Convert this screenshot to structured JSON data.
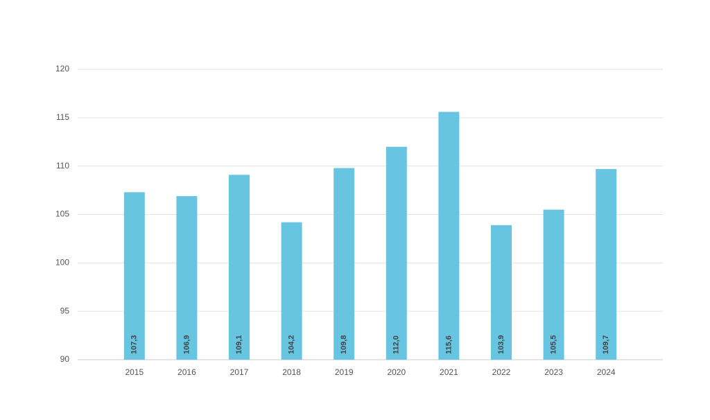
{
  "chart_data": {
    "type": "bar",
    "categories": [
      "2015",
      "2016",
      "2017",
      "2018",
      "2019",
      "2020",
      "2021",
      "2022",
      "2023",
      "2024"
    ],
    "values": [
      107.3,
      106.9,
      109.1,
      104.2,
      109.8,
      112.0,
      115.6,
      103.9,
      105.5,
      109.7
    ],
    "value_labels": [
      "107,3",
      "106,9",
      "109,1",
      "104,2",
      "109,8",
      "112,0",
      "115,6",
      "103,9",
      "105,5",
      "109,7"
    ],
    "color": "#67c5e2",
    "ylim": [
      90,
      120
    ],
    "yticks": [
      90,
      95,
      100,
      105,
      110,
      115,
      120
    ],
    "grid": true
  }
}
